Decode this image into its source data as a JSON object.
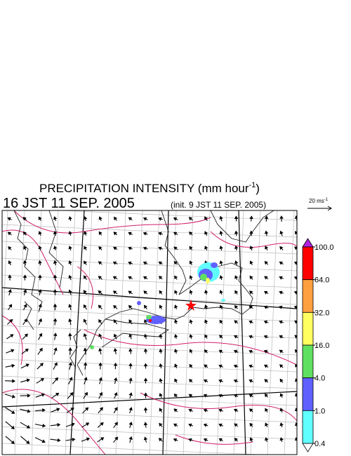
{
  "header": {
    "title": "PRECIPITATION INTENSITY (mm hour",
    "title_exponent": "-1",
    "title_close": ")",
    "valid_time": "16 JST 11 SEP. 2005",
    "init_time": "(init. 9 JST 11 SEP. 2005)"
  },
  "wind_scale": {
    "label": "20 ms",
    "exponent": "-1"
  },
  "colorbar": {
    "levels": [
      {
        "value": 100,
        "label": "100.0"
      },
      {
        "value": 64,
        "label": "64.0"
      },
      {
        "value": 32,
        "label": "32.0"
      },
      {
        "value": 16,
        "label": "16.0"
      },
      {
        "value": 4,
        "label": "4.0"
      },
      {
        "value": 1,
        "label": "1.0"
      },
      {
        "value": 0.4,
        "label": "0.4"
      }
    ],
    "colors": [
      "#ff0000",
      "#ffa040",
      "#ffff60",
      "#60e060",
      "#6060ff",
      "#60ffff"
    ],
    "over_color": "#b020e0",
    "under_color": "#ffffff"
  }
}
